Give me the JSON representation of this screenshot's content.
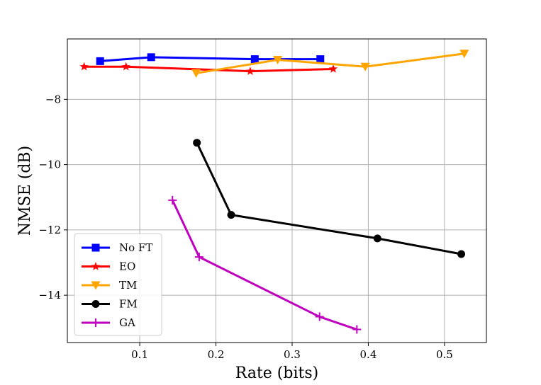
{
  "chart_data": {
    "type": "line",
    "title": "",
    "xlabel": "Rate (bits)",
    "ylabel": "NMSE (dB)",
    "xlim": [
      0.005,
      0.555
    ],
    "ylim": [
      -15.45,
      -6.15
    ],
    "xticks": [
      0.1,
      0.2,
      0.3,
      0.4,
      0.5
    ],
    "xtick_labels": [
      "0.1",
      "0.2",
      "0.3",
      "0.4",
      "0.5"
    ],
    "yticks": [
      -8,
      -10,
      -12,
      -14
    ],
    "ytick_labels": [
      "−8",
      "−10",
      "−12",
      "−14"
    ],
    "grid": true,
    "legend_position": "lower-left",
    "series": [
      {
        "name": "No FT",
        "color": "#0000ff",
        "marker": "square",
        "x": [
          0.048,
          0.115,
          0.251,
          0.337
        ],
        "y": [
          -6.83,
          -6.71,
          -6.77,
          -6.77
        ]
      },
      {
        "name": "EO",
        "color": "#ff0000",
        "marker": "star",
        "x": [
          0.027,
          0.082,
          0.245,
          0.354
        ],
        "y": [
          -7.0,
          -7.0,
          -7.14,
          -7.07
        ]
      },
      {
        "name": "TM",
        "color": "#ffa500",
        "marker": "triangle-down",
        "x": [
          0.174,
          0.281,
          0.396,
          0.526
        ],
        "y": [
          -7.2,
          -6.79,
          -7.0,
          -6.6
        ]
      },
      {
        "name": "FM",
        "color": "#000000",
        "marker": "circle",
        "x": [
          0.175,
          0.22,
          0.412,
          0.522
        ],
        "y": [
          -9.33,
          -11.54,
          -12.26,
          -12.74
        ]
      },
      {
        "name": "GA",
        "color": "#bf00bf",
        "marker": "plus",
        "x": [
          0.143,
          0.178,
          0.336,
          0.385
        ],
        "y": [
          -11.09,
          -12.83,
          -14.66,
          -15.05
        ]
      }
    ]
  }
}
